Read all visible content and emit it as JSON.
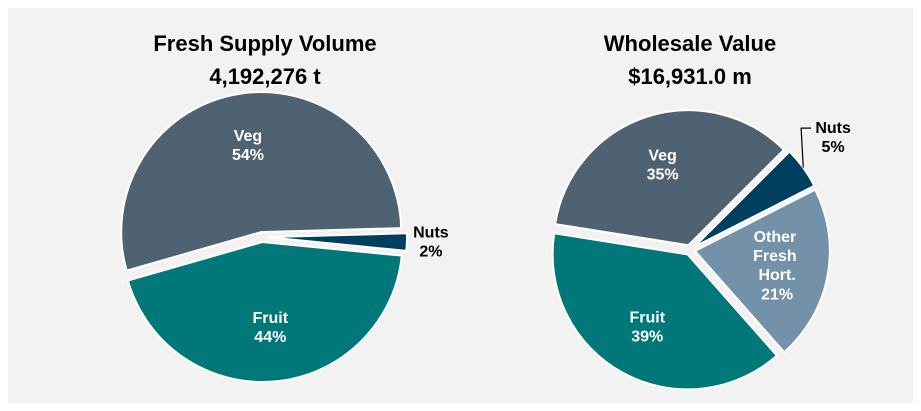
{
  "chart_data": [
    {
      "type": "pie",
      "title": "Fresh Supply Volume",
      "subtitle": "4,192,276 t",
      "categories": [
        "Veg",
        "Nuts",
        "Fruit"
      ],
      "values": [
        54,
        2,
        44
      ],
      "value_labels": [
        "54%",
        "2%",
        "44%"
      ],
      "colors": [
        "#4f6272",
        "#003f5f",
        "#00787a"
      ]
    },
    {
      "type": "pie",
      "title": "Wholesale Value",
      "subtitle": "$16,931.0 m",
      "categories": [
        "Veg",
        "Nuts",
        "Other Fresh Hort.",
        "Fruit"
      ],
      "values": [
        35,
        5,
        21,
        39
      ],
      "value_labels": [
        "35%",
        "5%",
        "21%",
        "39%"
      ],
      "colors": [
        "#4f6272",
        "#003f5f",
        "#7491aa",
        "#00787a"
      ]
    }
  ]
}
